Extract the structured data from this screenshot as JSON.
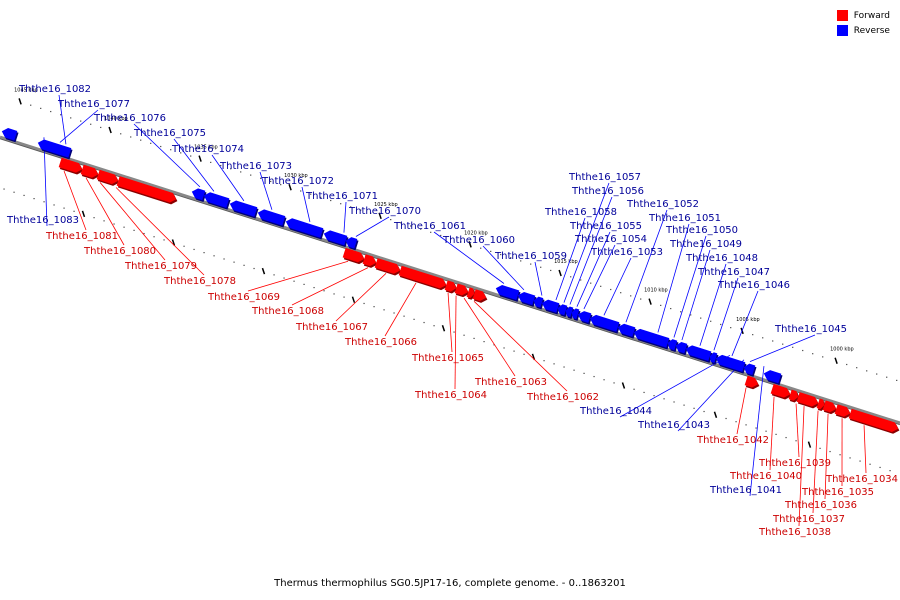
{
  "legend": {
    "items": [
      {
        "label": "Forward",
        "color": "#ff0000"
      },
      {
        "label": "Reverse",
        "color": "#0000ff"
      }
    ]
  },
  "caption": "Thermus thermophilus SG0.5JP17-16, complete genome. - 0..1863201",
  "colors": {
    "forward": "#ff0000",
    "reverse": "#0000ff",
    "forward_text": "#cc0000",
    "reverse_text": "#000099",
    "backbone": "#888888"
  },
  "ticks": [
    {
      "label": "1045 kbp",
      "kbp": 1045
    },
    {
      "label": "1040 kbp",
      "kbp": 1040
    },
    {
      "label": "1035 kbp",
      "kbp": 1035
    },
    {
      "label": "1030 kbp",
      "kbp": 1030
    },
    {
      "label": "1025 kbp",
      "kbp": 1025
    },
    {
      "label": "1020 kbp",
      "kbp": 1020
    },
    {
      "label": "1015 kbp",
      "kbp": 1015
    },
    {
      "label": "1010 kbp",
      "kbp": 1010
    },
    {
      "label": "1005 kbp",
      "kbp": 1005
    },
    {
      "label": "1000 kbp",
      "kbp": 1000
    }
  ],
  "genes": [
    {
      "name": "Ththe16_1083",
      "strand": "reverse"
    },
    {
      "name": "Ththe16_1082",
      "strand": "reverse"
    },
    {
      "name": "Ththe16_1081",
      "strand": "forward"
    },
    {
      "name": "Ththe16_1080",
      "strand": "forward"
    },
    {
      "name": "Ththe16_1079",
      "strand": "forward"
    },
    {
      "name": "Ththe16_1078",
      "strand": "forward"
    },
    {
      "name": "Ththe16_1077",
      "strand": "reverse"
    },
    {
      "name": "Ththe16_1076",
      "strand": "reverse"
    },
    {
      "name": "Ththe16_1075",
      "strand": "reverse"
    },
    {
      "name": "Ththe16_1074",
      "strand": "reverse"
    },
    {
      "name": "Ththe16_1073",
      "strand": "reverse"
    },
    {
      "name": "Ththe16_1072",
      "strand": "reverse"
    },
    {
      "name": "Ththe16_1071",
      "strand": "reverse"
    },
    {
      "name": "Ththe16_1070",
      "strand": "reverse"
    },
    {
      "name": "Ththe16_1069",
      "strand": "forward"
    },
    {
      "name": "Ththe16_1068",
      "strand": "forward"
    },
    {
      "name": "Ththe16_1067",
      "strand": "forward"
    },
    {
      "name": "Ththe16_1066",
      "strand": "forward"
    },
    {
      "name": "Ththe16_1065",
      "strand": "forward"
    },
    {
      "name": "Ththe16_1064",
      "strand": "forward"
    },
    {
      "name": "Ththe16_1063",
      "strand": "forward"
    },
    {
      "name": "Ththe16_1062",
      "strand": "forward"
    },
    {
      "name": "Ththe16_1061",
      "strand": "reverse"
    },
    {
      "name": "Ththe16_1060",
      "strand": "reverse"
    },
    {
      "name": "Ththe16_1059",
      "strand": "reverse"
    },
    {
      "name": "Ththe16_1058",
      "strand": "reverse"
    },
    {
      "name": "Ththe16_1057",
      "strand": "reverse"
    },
    {
      "name": "Ththe16_1056",
      "strand": "reverse"
    },
    {
      "name": "Ththe16_1055",
      "strand": "reverse"
    },
    {
      "name": "Ththe16_1054",
      "strand": "reverse"
    },
    {
      "name": "Ththe16_1053",
      "strand": "reverse"
    },
    {
      "name": "Ththe16_1052",
      "strand": "reverse"
    },
    {
      "name": "Ththe16_1051",
      "strand": "reverse"
    },
    {
      "name": "Ththe16_1050",
      "strand": "reverse"
    },
    {
      "name": "Ththe16_1049",
      "strand": "reverse"
    },
    {
      "name": "Ththe16_1048",
      "strand": "reverse"
    },
    {
      "name": "Ththe16_1047",
      "strand": "reverse"
    },
    {
      "name": "Ththe16_1046",
      "strand": "reverse"
    },
    {
      "name": "Ththe16_1045",
      "strand": "reverse"
    },
    {
      "name": "Ththe16_1044",
      "strand": "reverse"
    },
    {
      "name": "Ththe16_1043",
      "strand": "reverse"
    },
    {
      "name": "Ththe16_1042",
      "strand": "forward"
    },
    {
      "name": "Ththe16_1041",
      "strand": "reverse"
    },
    {
      "name": "Ththe16_1040",
      "strand": "forward"
    },
    {
      "name": "Ththe16_1039",
      "strand": "forward"
    },
    {
      "name": "Ththe16_1038",
      "strand": "forward"
    },
    {
      "name": "Ththe16_1037",
      "strand": "forward"
    },
    {
      "name": "Ththe16_1036",
      "strand": "forward"
    },
    {
      "name": "Ththe16_1035",
      "strand": "forward"
    },
    {
      "name": "Ththe16_1034",
      "strand": "forward"
    }
  ]
}
